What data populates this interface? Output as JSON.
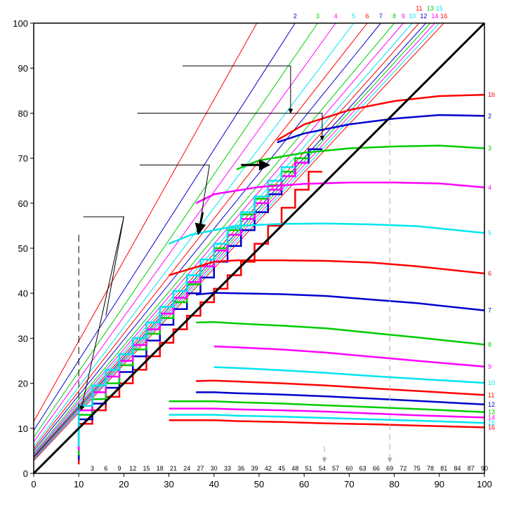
{
  "chart_data": {
    "type": "line",
    "title": "",
    "xlabel": "",
    "ylabel": "",
    "xlim": [
      0,
      100
    ],
    "ylim": [
      0,
      100
    ],
    "grid": false,
    "x_ticks": [
      0,
      10,
      20,
      30,
      40,
      50,
      60,
      70,
      80,
      90,
      100
    ],
    "y_ticks": [
      0,
      10,
      20,
      30,
      40,
      50,
      60,
      70,
      80,
      90,
      100
    ],
    "inner_x_ticks": [
      3,
      6,
      9,
      12,
      15,
      18,
      21,
      24,
      27,
      30,
      33,
      36,
      39,
      42,
      45,
      48,
      51,
      54,
      57,
      60,
      63,
      66,
      69,
      72,
      75,
      78,
      81,
      84,
      87,
      90
    ],
    "colors": {
      "red": "#ff0000",
      "blue": "#0000cc",
      "green": "#00cc00",
      "magenta": "#ff00ff",
      "cyan": "#00e5ee",
      "black": "#000000",
      "gray": "#aaaaaa"
    },
    "diagonal": {
      "x": [
        0,
        100
      ],
      "y": [
        0,
        100
      ]
    },
    "series": [
      {
        "name": "1b",
        "color": "#ff0000",
        "x": [
          54,
          60,
          70,
          80,
          90,
          100
        ],
        "y": [
          74,
          77.5,
          80.7,
          82.7,
          83.8,
          84.1
        ]
      },
      {
        "name": "2",
        "color": "#0000cc",
        "x": [
          54,
          60,
          70,
          80,
          90,
          100
        ],
        "y": [
          73.5,
          75.5,
          77.5,
          78.8,
          79.6,
          79.4
        ]
      },
      {
        "name": "3",
        "color": "#00cc00",
        "x": [
          45,
          50,
          60,
          70,
          80,
          90,
          100
        ],
        "y": [
          67.5,
          69.5,
          71.2,
          72.2,
          72.6,
          72.8,
          72.2
        ]
      },
      {
        "name": "4",
        "color": "#ff00ff",
        "x": [
          36,
          40,
          50,
          60,
          70,
          80,
          90,
          100
        ],
        "y": [
          60,
          62,
          63.6,
          64.3,
          64.6,
          64.6,
          64.4,
          63.5
        ]
      },
      {
        "name": "5",
        "color": "#00e5ee",
        "x": [
          30,
          35,
          45,
          55,
          65,
          75,
          85,
          100
        ],
        "y": [
          51,
          53,
          55,
          55.4,
          55.5,
          55.3,
          54.9,
          53.4
        ]
      },
      {
        "name": "6",
        "color": "#ff0000",
        "x": [
          30,
          40,
          45,
          55,
          65,
          75,
          85,
          100
        ],
        "y": [
          44,
          47,
          47.3,
          47.3,
          47.2,
          46.8,
          46,
          44.4
        ]
      },
      {
        "name": "7",
        "color": "#0000cc",
        "x": [
          36,
          40,
          45,
          55,
          65,
          75,
          85,
          100
        ],
        "y": [
          39.7,
          40.1,
          40,
          39.8,
          39.4,
          38.6,
          37.8,
          36.2
        ]
      },
      {
        "name": "8",
        "color": "#00cc00",
        "x": [
          36,
          40,
          45,
          55,
          65,
          75,
          85,
          100
        ],
        "y": [
          33.5,
          33.6,
          33.3,
          32.8,
          32.2,
          31.2,
          30.2,
          28.6
        ]
      },
      {
        "name": "9",
        "color": "#ff00ff",
        "x": [
          40,
          45,
          55,
          65,
          75,
          85,
          100
        ],
        "y": [
          28.2,
          28,
          27.5,
          26.8,
          25.9,
          25,
          23.7
        ]
      },
      {
        "name": "10",
        "color": "#00e5ee",
        "x": [
          40,
          45,
          55,
          65,
          75,
          85,
          100
        ],
        "y": [
          23.6,
          23.4,
          22.9,
          22.3,
          21.6,
          21,
          20.1
        ]
      },
      {
        "name": "11",
        "color": "#ff0000",
        "x": [
          36,
          40,
          45,
          55,
          65,
          75,
          85,
          100
        ],
        "y": [
          20.5,
          20.6,
          20.4,
          20,
          19.5,
          18.9,
          18.3,
          17.4
        ]
      },
      {
        "name": "12",
        "color": "#0000cc",
        "x": [
          36,
          40,
          45,
          55,
          65,
          75,
          85,
          100
        ],
        "y": [
          18,
          18,
          17.8,
          17.5,
          17.1,
          16.6,
          16.1,
          15.3
        ]
      },
      {
        "name": "13",
        "color": "#00cc00",
        "x": [
          30,
          40,
          45,
          55,
          65,
          75,
          85,
          100
        ],
        "y": [
          16,
          16,
          15.8,
          15.5,
          15.1,
          14.7,
          14.3,
          13.6
        ]
      },
      {
        "name": "14",
        "color": "#ff00ff",
        "x": [
          30,
          40,
          45,
          55,
          65,
          75,
          85,
          100
        ],
        "y": [
          14.4,
          14.4,
          14.2,
          14,
          13.7,
          13.3,
          12.9,
          12.4
        ]
      },
      {
        "name": "15",
        "color": "#00e5ee",
        "x": [
          30,
          40,
          45,
          55,
          65,
          75,
          85,
          100
        ],
        "y": [
          13,
          13,
          12.8,
          12.6,
          12.3,
          12,
          11.7,
          11.2
        ]
      },
      {
        "name": "16",
        "color": "#ff0000",
        "x": [
          30,
          40,
          45,
          55,
          65,
          75,
          85,
          100
        ],
        "y": [
          11.8,
          11.8,
          11.6,
          11.4,
          11.1,
          10.9,
          10.6,
          10.2
        ]
      }
    ],
    "operating_lines": [
      {
        "name": "1b",
        "color": "#ff0000",
        "x": [
          0,
          49.5
        ],
        "y": [
          11.5,
          100
        ]
      },
      {
        "name": "2",
        "color": "#0000cc",
        "x": [
          0,
          58
        ],
        "y": [
          9.5,
          100
        ]
      },
      {
        "name": "3",
        "color": "#00cc00",
        "x": [
          0,
          63
        ],
        "y": [
          8,
          100
        ]
      },
      {
        "name": "4",
        "color": "#ff00ff",
        "x": [
          0,
          67
        ],
        "y": [
          7,
          100
        ]
      },
      {
        "name": "5",
        "color": "#00e5ee",
        "x": [
          0,
          71
        ],
        "y": [
          6,
          100
        ]
      },
      {
        "name": "6",
        "color": "#ff0000",
        "x": [
          0,
          74
        ],
        "y": [
          5.5,
          100
        ]
      },
      {
        "name": "7",
        "color": "#0000cc",
        "x": [
          0,
          77
        ],
        "y": [
          5,
          100
        ]
      },
      {
        "name": "8",
        "color": "#00cc00",
        "x": [
          0,
          80
        ],
        "y": [
          4.5,
          100
        ]
      },
      {
        "name": "9",
        "color": "#ff00ff",
        "x": [
          0,
          82
        ],
        "y": [
          4.2,
          100
        ]
      },
      {
        "name": "10",
        "color": "#00e5ee",
        "x": [
          0,
          84
        ],
        "y": [
          4,
          100
        ]
      },
      {
        "name": "11",
        "color": "#ff0000",
        "x": [
          0,
          85.5
        ],
        "y": [
          3.8,
          100
        ]
      },
      {
        "name": "12",
        "color": "#0000cc",
        "x": [
          0,
          87
        ],
        "y": [
          3.6,
          100
        ]
      },
      {
        "name": "13",
        "color": "#00cc00",
        "x": [
          0,
          88
        ],
        "y": [
          3.4,
          100
        ]
      },
      {
        "name": "14",
        "color": "#ff00ff",
        "x": [
          0,
          89
        ],
        "y": [
          3.2,
          100
        ]
      },
      {
        "name": "15",
        "color": "#00e5ee",
        "x": [
          0,
          90
        ],
        "y": [
          3,
          100
        ]
      },
      {
        "name": "16",
        "color": "#ff0000",
        "x": [
          0,
          91
        ],
        "y": [
          2.8,
          100
        ]
      }
    ],
    "top_labels": [
      {
        "text": "2",
        "color": "#0000cc",
        "x": 58
      },
      {
        "text": "3",
        "color": "#00cc00",
        "x": 63
      },
      {
        "text": "4",
        "color": "#ff00ff",
        "x": 67
      },
      {
        "text": "5",
        "color": "#00e5ee",
        "x": 71
      },
      {
        "text": "6",
        "color": "#ff0000",
        "x": 74
      },
      {
        "text": "7",
        "color": "#0000cc",
        "x": 77
      },
      {
        "text": "8",
        "color": "#00cc00",
        "x": 80
      },
      {
        "text": "9",
        "color": "#ff00ff",
        "x": 82
      },
      {
        "text": "10",
        "color": "#00e5ee",
        "x": 84
      },
      {
        "text": "11",
        "color": "#ff0000",
        "x": 85.5,
        "row": 0
      },
      {
        "text": "12",
        "color": "#0000cc",
        "x": 86.5
      },
      {
        "text": "13",
        "color": "#00cc00",
        "x": 88,
        "row": 0
      },
      {
        "text": "14",
        "color": "#ff00ff",
        "x": 89
      },
      {
        "text": "15",
        "color": "#00e5ee",
        "x": 90,
        "row": 0
      },
      {
        "text": "16",
        "color": "#ff0000",
        "x": 91
      }
    ],
    "steps": [
      {
        "color": "#ff0000",
        "x": [
          10,
          10,
          13,
          13,
          16,
          16,
          19,
          19,
          22,
          22,
          25,
          25,
          28,
          28,
          31,
          31,
          34,
          34,
          37,
          37,
          40,
          40,
          43,
          43,
          46,
          46,
          49,
          49,
          52,
          52,
          55,
          55,
          58,
          58,
          61,
          61,
          64
        ],
        "y": [
          2,
          11,
          11,
          14,
          14,
          17,
          17,
          20,
          20,
          23,
          23,
          26,
          26,
          29,
          29,
          32,
          32,
          35,
          35,
          38,
          38,
          41,
          41,
          44,
          44,
          47,
          47,
          51,
          51,
          55,
          55,
          59,
          59,
          63,
          63,
          67,
          67
        ]
      },
      {
        "color": "#0000cc",
        "x": [
          10,
          10,
          13,
          13,
          16,
          16,
          19,
          19,
          22,
          22,
          25,
          25,
          28,
          28,
          31,
          31,
          34,
          34,
          37,
          37,
          40,
          40,
          43,
          43,
          46,
          46,
          49,
          49,
          52,
          52,
          55,
          55,
          58,
          58,
          61,
          61,
          64
        ],
        "y": [
          3,
          12,
          12,
          15.5,
          15.5,
          19,
          19,
          22.5,
          22.5,
          26,
          26,
          29.5,
          29.5,
          33,
          33,
          36.5,
          36.5,
          40,
          40,
          43.5,
          43.5,
          47,
          47,
          50.5,
          50.5,
          54,
          54,
          58,
          58,
          62,
          62,
          66,
          66,
          69,
          69,
          72,
          72
        ]
      },
      {
        "color": "#00cc00",
        "x": [
          10,
          10,
          13,
          13,
          16,
          16,
          19,
          19,
          22,
          22,
          25,
          25,
          28,
          28,
          31,
          31,
          34,
          34,
          37,
          37,
          40,
          40,
          43,
          43,
          46,
          46,
          49,
          49,
          52,
          52,
          55,
          55,
          58,
          58,
          61
        ],
        "y": [
          4,
          13,
          13,
          16.5,
          16.5,
          20,
          20,
          24,
          24,
          27.5,
          27.5,
          31,
          31,
          34.5,
          34.5,
          38,
          38,
          42,
          42,
          46,
          46,
          50,
          50,
          54,
          54,
          57.5,
          57.5,
          61,
          61,
          64,
          64,
          67,
          67,
          70,
          70
        ]
      },
      {
        "color": "#ff00ff",
        "x": [
          10,
          10,
          13,
          13,
          16,
          16,
          19,
          19,
          22,
          22,
          25,
          25,
          28,
          28,
          31,
          31,
          34,
          34,
          37,
          37,
          40,
          40,
          43,
          43,
          46,
          46,
          49,
          49,
          52,
          52,
          55,
          55,
          58,
          58,
          61
        ],
        "y": [
          5,
          14,
          14,
          18,
          18,
          21.5,
          21.5,
          25,
          25,
          28.5,
          28.5,
          32,
          32,
          35.5,
          35.5,
          39,
          39,
          42.5,
          42.5,
          46,
          46,
          49.5,
          49.5,
          53,
          53,
          56.5,
          56.5,
          60,
          60,
          63,
          63,
          66,
          66,
          69,
          69
        ]
      },
      {
        "color": "#00e5ee",
        "x": [
          10,
          10,
          13,
          13,
          16,
          16,
          19,
          19,
          22,
          22,
          25,
          25,
          28,
          28,
          31,
          31,
          34,
          34,
          37,
          37,
          40,
          40,
          43,
          43,
          46,
          46,
          49,
          49,
          52,
          52,
          55,
          55,
          58
        ],
        "y": [
          6,
          15,
          15,
          19.5,
          19.5,
          23,
          23,
          26.5,
          26.5,
          30,
          30,
          33.5,
          33.5,
          37,
          37,
          40.5,
          40.5,
          44,
          44,
          47.5,
          47.5,
          51,
          51,
          54.5,
          54.5,
          58,
          58,
          61.5,
          61.5,
          65,
          65,
          68,
          68
        ]
      }
    ],
    "annotations": {
      "black_lines": [
        {
          "x": [
            33,
            57,
            57
          ],
          "y": [
            90.5,
            90.5,
            80
          ]
        },
        {
          "x": [
            23,
            64,
            64
          ],
          "y": [
            80,
            80,
            74
          ]
        },
        {
          "x": [
            23.5,
            39
          ],
          "y": [
            68.5,
            68.5
          ]
        },
        {
          "x": [
            39,
            36.5
          ],
          "y": [
            68.5,
            53
          ]
        },
        {
          "x": [
            11,
            20,
            10.5
          ],
          "y": [
            57,
            57,
            14
          ]
        },
        {
          "x": [
            20,
            16
          ],
          "y": [
            57,
            35
          ]
        }
      ],
      "black_dashed": [
        {
          "x": [
            10,
            10
          ],
          "y": [
            53,
            13
          ]
        }
      ],
      "gray_dashed": [
        {
          "x": [
            79,
            79
          ],
          "y": [
            78.5,
            2.5
          ]
        },
        {
          "x": [
            64.5,
            64.5
          ],
          "y": [
            6,
            2.5
          ]
        }
      ],
      "bold_arrows": [
        {
          "x1": 46,
          "y1": 68.5,
          "x2": 52.5,
          "y2": 68.5
        },
        {
          "x1": 37.5,
          "y1": 58,
          "x2": 36.5,
          "y2": 53
        }
      ]
    }
  }
}
